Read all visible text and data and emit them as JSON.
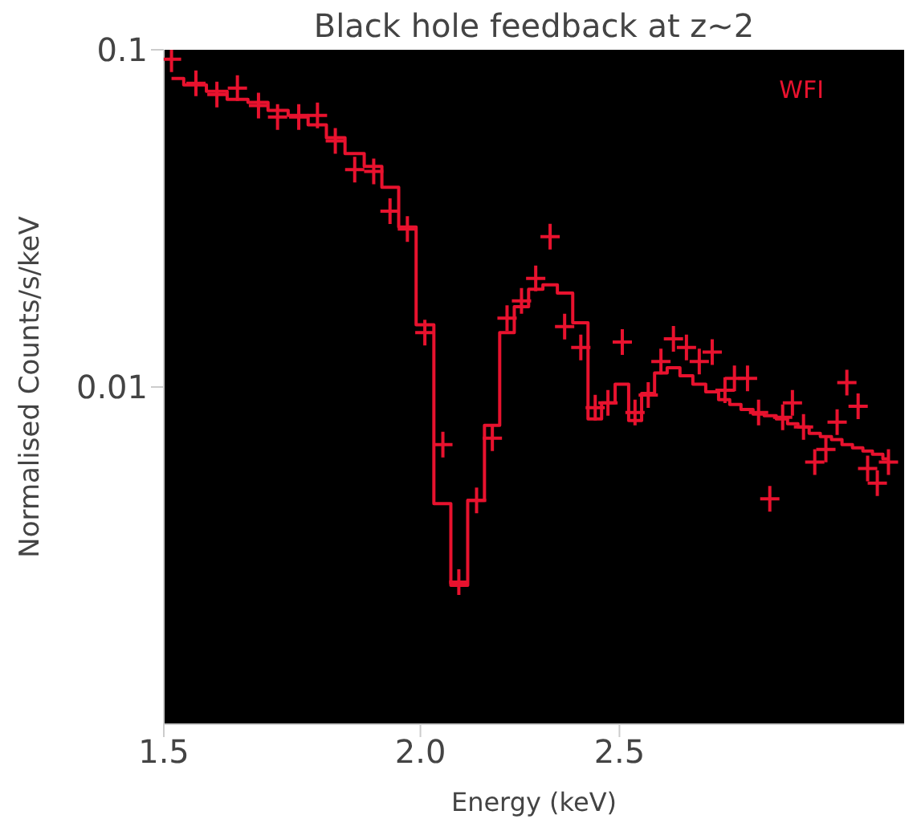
{
  "chart_data": {
    "type": "scatter",
    "title": "Black hole feedback at z~2",
    "xlabel": "Energy (keV)",
    "ylabel": "Normalised Counts/s/keV",
    "log": "xy",
    "xlim": [
      1.5,
      3.44
    ],
    "xticks": [
      {
        "value": 1.5,
        "label": "1.5"
      },
      {
        "value": 2,
        "label": "2.0"
      },
      {
        "value": 2.5,
        "label": "2.5"
      }
    ],
    "ylim": [
      0.001,
      0.1
    ],
    "yticks": [
      0.01,
      0.1
    ],
    "grid": false,
    "legend": "top right",
    "series": [
      {
        "name": "WFI",
        "marker": "cross",
        "color": "#e8122e",
        "x": [
          1.513,
          1.555,
          1.592,
          1.629,
          1.668,
          1.704,
          1.745,
          1.782,
          1.818,
          1.858,
          1.898,
          1.933,
          1.971,
          2.01,
          2.051,
          2.088,
          2.13,
          2.168,
          2.204,
          2.24,
          2.276,
          2.313,
          2.351,
          2.394,
          2.433,
          2.468,
          2.508,
          2.544,
          2.582,
          2.619,
          2.656,
          2.695,
          2.734,
          2.774,
          2.814,
          2.844,
          2.886,
          2.922,
          2.959,
          3.002,
          3.035,
          3.073,
          3.112,
          3.151,
          3.191,
          3.226,
          3.267,
          3.302,
          3.338,
          3.38
        ],
        "values": [
          0.0937,
          0.0795,
          0.0737,
          0.077,
          0.0683,
          0.0632,
          0.0632,
          0.0639,
          0.0537,
          0.0441,
          0.0436,
          0.0332,
          0.0294,
          0.0145,
          0.00675,
          0.00264,
          0.00461,
          0.00705,
          0.016,
          0.018,
          0.021,
          0.0279,
          0.0151,
          0.0131,
          0.00868,
          0.00897,
          0.0136,
          0.0084,
          0.00947,
          0.0119,
          0.0139,
          0.0131,
          0.0119,
          0.0127,
          0.00978,
          0.0106,
          0.0106,
          0.0084,
          0.00466,
          0.00813,
          0.00897,
          0.00761,
          0.00599,
          0.00653,
          0.00787,
          0.0103,
          0.00877,
          0.00573,
          0.00519,
          0.00599
        ]
      },
      {
        "type": "step",
        "color": "#e8122e",
        "x": [
          1.513,
          1.555,
          1.592,
          1.629,
          1.668,
          1.704,
          1.745,
          1.782,
          1.818,
          1.858,
          1.898,
          1.933,
          1.971,
          2.01,
          2.051,
          2.088,
          2.13,
          2.168,
          2.204,
          2.24,
          2.276,
          2.313,
          2.351,
          2.394,
          2.433,
          2.468,
          2.508,
          2.544,
          2.582,
          2.619,
          2.656,
          2.695,
          2.734,
          2.774,
          2.814,
          2.844,
          2.886,
          2.922,
          2.959,
          3.002,
          3.035,
          3.073,
          3.112,
          3.151,
          3.191,
          3.226,
          3.267,
          3.302,
          3.338,
          3.38
        ],
        "values": [
          0.0822,
          0.0787,
          0.0753,
          0.0713,
          0.0698,
          0.0661,
          0.0639,
          0.0599,
          0.0549,
          0.0492,
          0.0451,
          0.0391,
          0.0298,
          0.0153,
          0.00451,
          0.00258,
          0.00461,
          0.0077,
          0.0145,
          0.0173,
          0.0195,
          0.0201,
          0.019,
          0.0155,
          0.00804,
          0.00897,
          0.0102,
          0.00795,
          0.00957,
          0.011,
          0.0114,
          0.0108,
          0.0102,
          0.00968,
          0.00917,
          0.00887,
          0.00858,
          0.00831,
          0.00822,
          0.00804,
          0.00778,
          0.00761,
          0.00729,
          0.00713,
          0.00698,
          0.00675,
          0.0066,
          0.00646,
          0.00632,
          0.00612
        ]
      }
    ]
  }
}
